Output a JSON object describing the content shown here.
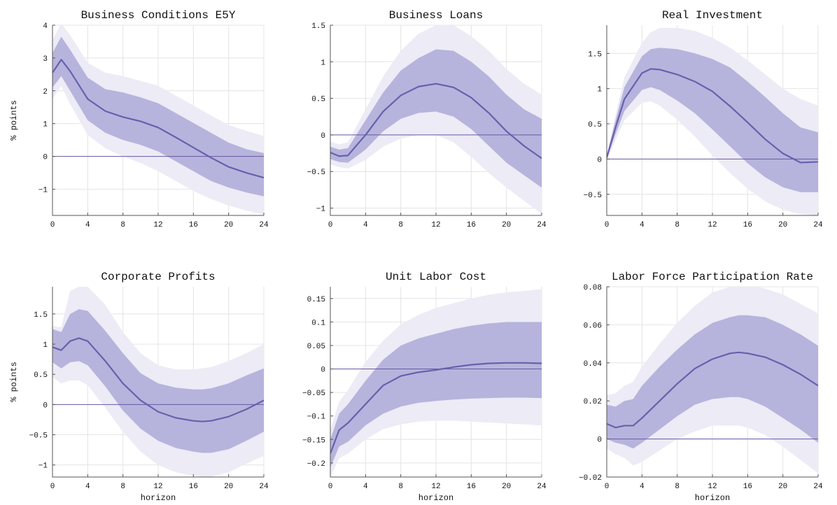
{
  "style": {
    "outer_band_color": "#ecebf6",
    "inner_band_color": "#b6b4dc",
    "median_color": "#6a5fad",
    "zero_line_color": "#6a57a4"
  },
  "chart_data": [
    {
      "type": "area",
      "title": "Business Conditions E5Y",
      "xlabel": "",
      "ylabel": "% points",
      "xlim": [
        0,
        24
      ],
      "ylim": [
        -1.8,
        4.0
      ],
      "xticks": [
        0,
        4,
        8,
        12,
        16,
        20,
        24
      ],
      "yticks": [
        -1,
        0,
        1,
        2,
        3,
        4
      ],
      "ytick_labels": [
        "−1",
        "0",
        "1",
        "2",
        "3",
        "4"
      ],
      "grid": true,
      "x": [
        0,
        1,
        2,
        4,
        6,
        8,
        10,
        12,
        14,
        16,
        18,
        20,
        22,
        24
      ],
      "median": [
        2.55,
        2.95,
        2.6,
        1.75,
        1.38,
        1.2,
        1.07,
        0.88,
        0.58,
        0.27,
        -0.04,
        -0.32,
        -0.5,
        -0.65
      ],
      "inner_band": {
        "lower": [
          2.1,
          2.45,
          2.0,
          1.1,
          0.72,
          0.5,
          0.35,
          0.15,
          -0.15,
          -0.45,
          -0.75,
          -0.95,
          -1.1,
          -1.22
        ],
        "upper": [
          3.15,
          3.65,
          3.25,
          2.4,
          2.05,
          1.95,
          1.8,
          1.62,
          1.32,
          1.02,
          0.72,
          0.42,
          0.22,
          0.1
        ]
      },
      "outer_band": {
        "lower": [
          1.75,
          2.15,
          1.6,
          0.65,
          0.25,
          0.0,
          -0.2,
          -0.45,
          -0.75,
          -1.05,
          -1.3,
          -1.5,
          -1.65,
          -1.78
        ],
        "upper": [
          3.55,
          4.05,
          3.7,
          2.85,
          2.55,
          2.45,
          2.3,
          2.15,
          1.85,
          1.55,
          1.25,
          0.95,
          0.78,
          0.62
        ]
      }
    },
    {
      "type": "area",
      "title": "Business Loans",
      "xlabel": "",
      "ylabel": "",
      "xlim": [
        0,
        24
      ],
      "ylim": [
        -1.1,
        1.5
      ],
      "xticks": [
        0,
        4,
        8,
        12,
        16,
        20,
        24
      ],
      "yticks": [
        -1,
        -0.5,
        0,
        0.5,
        1,
        1.5
      ],
      "ytick_labels": [
        "−1",
        "−0.5",
        "0",
        "0.5",
        "1",
        "1.5"
      ],
      "grid": true,
      "x": [
        0,
        1,
        2,
        4,
        6,
        8,
        10,
        12,
        14,
        16,
        18,
        20,
        22,
        24
      ],
      "median": [
        -0.24,
        -0.29,
        -0.28,
        0.0,
        0.32,
        0.54,
        0.66,
        0.7,
        0.65,
        0.51,
        0.3,
        0.05,
        -0.15,
        -0.32
      ],
      "inner_band": {
        "lower": [
          -0.33,
          -0.37,
          -0.38,
          -0.2,
          0.05,
          0.22,
          0.3,
          0.32,
          0.25,
          0.08,
          -0.15,
          -0.38,
          -0.55,
          -0.72
        ],
        "upper": [
          -0.16,
          -0.2,
          -0.18,
          0.2,
          0.58,
          0.88,
          1.05,
          1.17,
          1.15,
          1.0,
          0.8,
          0.55,
          0.35,
          0.22
        ]
      },
      "outer_band": {
        "lower": [
          -0.4,
          -0.44,
          -0.46,
          -0.34,
          -0.16,
          -0.05,
          0.0,
          0.0,
          -0.1,
          -0.3,
          -0.52,
          -0.72,
          -0.9,
          -1.08
        ],
        "upper": [
          -0.09,
          -0.13,
          -0.1,
          0.35,
          0.8,
          1.15,
          1.38,
          1.5,
          1.5,
          1.35,
          1.15,
          0.9,
          0.7,
          0.55
        ]
      }
    },
    {
      "type": "area",
      "title": "Real Investment",
      "xlabel": "",
      "ylabel": "",
      "xlim": [
        0,
        24
      ],
      "ylim": [
        -0.8,
        1.9
      ],
      "xticks": [
        0,
        4,
        8,
        12,
        16,
        20,
        24
      ],
      "yticks": [
        -0.5,
        0,
        0.5,
        1,
        1.5
      ],
      "ytick_labels": [
        "−0.5",
        "0",
        "0.5",
        "1",
        "1.5"
      ],
      "grid": true,
      "x": [
        0,
        1,
        2,
        4,
        5,
        6,
        8,
        10,
        12,
        14,
        16,
        18,
        20,
        22,
        24
      ],
      "median": [
        0.02,
        0.45,
        0.85,
        1.22,
        1.28,
        1.27,
        1.2,
        1.1,
        0.96,
        0.75,
        0.52,
        0.28,
        0.08,
        -0.05,
        -0.04
      ],
      "inner_band": {
        "lower": [
          0.0,
          0.35,
          0.68,
          0.98,
          1.02,
          0.98,
          0.83,
          0.65,
          0.42,
          0.18,
          -0.06,
          -0.26,
          -0.4,
          -0.47,
          -0.47
        ],
        "upper": [
          0.05,
          0.55,
          1.02,
          1.46,
          1.56,
          1.58,
          1.56,
          1.5,
          1.42,
          1.3,
          1.1,
          0.88,
          0.65,
          0.45,
          0.38
        ]
      },
      "outer_band": {
        "lower": [
          -0.02,
          0.27,
          0.55,
          0.8,
          0.82,
          0.76,
          0.56,
          0.32,
          0.05,
          -0.2,
          -0.42,
          -0.6,
          -0.72,
          -0.78,
          -0.8
        ],
        "upper": [
          0.07,
          0.62,
          1.16,
          1.65,
          1.8,
          1.86,
          1.86,
          1.82,
          1.72,
          1.58,
          1.4,
          1.2,
          1.0,
          0.85,
          0.76
        ]
      }
    },
    {
      "type": "area",
      "title": "Corporate Profits",
      "xlabel": "horizon",
      "ylabel": "% points",
      "xlim": [
        0,
        24
      ],
      "ylim": [
        -1.2,
        1.95
      ],
      "xticks": [
        0,
        4,
        8,
        12,
        16,
        20,
        24
      ],
      "yticks": [
        -1,
        -0.5,
        0,
        0.5,
        1,
        1.5
      ],
      "ytick_labels": [
        "−1",
        "−0.5",
        "0",
        "0.5",
        "1",
        "1.5"
      ],
      "grid": true,
      "x": [
        0,
        1,
        2,
        3,
        4,
        6,
        8,
        10,
        12,
        14,
        16,
        17,
        18,
        20,
        22,
        24
      ],
      "median": [
        0.95,
        0.9,
        1.05,
        1.1,
        1.05,
        0.72,
        0.35,
        0.07,
        -0.12,
        -0.22,
        -0.27,
        -0.28,
        -0.27,
        -0.2,
        -0.08,
        0.07
      ],
      "inner_band": {
        "lower": [
          0.7,
          0.6,
          0.7,
          0.72,
          0.65,
          0.3,
          -0.1,
          -0.4,
          -0.6,
          -0.72,
          -0.78,
          -0.8,
          -0.8,
          -0.74,
          -0.6,
          -0.45
        ],
        "upper": [
          1.25,
          1.2,
          1.5,
          1.58,
          1.55,
          1.22,
          0.85,
          0.52,
          0.35,
          0.28,
          0.25,
          0.25,
          0.27,
          0.35,
          0.48,
          0.6
        ]
      },
      "outer_band": {
        "lower": [
          0.45,
          0.35,
          0.4,
          0.4,
          0.32,
          -0.05,
          -0.45,
          -0.78,
          -1.0,
          -1.12,
          -1.18,
          -1.2,
          -1.2,
          -1.12,
          -0.98,
          -0.85
        ],
        "upper": [
          1.3,
          1.28,
          1.88,
          1.95,
          1.95,
          1.65,
          1.2,
          0.85,
          0.65,
          0.58,
          0.58,
          0.6,
          0.62,
          0.72,
          0.85,
          1.0
        ]
      }
    },
    {
      "type": "area",
      "title": "Unit Labor Cost",
      "xlabel": "horizon",
      "ylabel": "",
      "xlim": [
        0,
        24
      ],
      "ylim": [
        -0.23,
        0.175
      ],
      "xticks": [
        0,
        4,
        8,
        12,
        16,
        20,
        24
      ],
      "yticks": [
        -0.2,
        -0.15,
        -0.1,
        -0.05,
        0,
        0.05,
        0.1,
        0.15
      ],
      "ytick_labels": [
        "−0.2",
        "−0.15",
        "−0.1",
        "−0.05",
        "0",
        "0.05",
        "0.1",
        "0.15"
      ],
      "grid": true,
      "x": [
        0,
        1,
        2,
        4,
        6,
        8,
        10,
        12,
        14,
        16,
        18,
        20,
        22,
        24
      ],
      "median": [
        -0.18,
        -0.13,
        -0.115,
        -0.075,
        -0.035,
        -0.015,
        -0.007,
        -0.002,
        0.004,
        0.009,
        0.012,
        0.013,
        0.013,
        0.012
      ],
      "inner_band": {
        "lower": [
          -0.21,
          -0.165,
          -0.155,
          -0.12,
          -0.095,
          -0.08,
          -0.072,
          -0.068,
          -0.065,
          -0.063,
          -0.062,
          -0.061,
          -0.061,
          -0.062
        ],
        "upper": [
          -0.15,
          -0.095,
          -0.075,
          -0.025,
          0.02,
          0.05,
          0.065,
          0.075,
          0.085,
          0.092,
          0.097,
          0.1,
          0.1,
          0.1
        ]
      },
      "outer_band": {
        "lower": [
          -0.23,
          -0.19,
          -0.18,
          -0.15,
          -0.128,
          -0.118,
          -0.112,
          -0.11,
          -0.11,
          -0.112,
          -0.114,
          -0.116,
          -0.118,
          -0.12
        ],
        "upper": [
          -0.13,
          -0.07,
          -0.045,
          0.015,
          0.06,
          0.095,
          0.115,
          0.13,
          0.14,
          0.15,
          0.158,
          0.163,
          0.166,
          0.17
        ]
      }
    },
    {
      "type": "area",
      "title": "Labor Force Participation Rate",
      "xlabel": "horizon",
      "ylabel": "",
      "xlim": [
        0,
        24
      ],
      "ylim": [
        -0.02,
        0.08
      ],
      "xticks": [
        0,
        4,
        8,
        12,
        16,
        20,
        24
      ],
      "yticks": [
        -0.02,
        0,
        0.02,
        0.04,
        0.06,
        0.08
      ],
      "ytick_labels": [
        "−0.02",
        "0",
        "0.02",
        "0.04",
        "0.06",
        "0.08"
      ],
      "grid": true,
      "x": [
        0,
        1,
        2,
        3,
        4,
        6,
        8,
        10,
        12,
        14,
        15,
        16,
        18,
        20,
        22,
        24
      ],
      "median": [
        0.008,
        0.006,
        0.007,
        0.007,
        0.011,
        0.02,
        0.029,
        0.037,
        0.042,
        0.045,
        0.0455,
        0.045,
        0.043,
        0.039,
        0.034,
        0.028
      ],
      "inner_band": {
        "lower": [
          0.0,
          -0.002,
          -0.003,
          -0.005,
          -0.002,
          0.005,
          0.012,
          0.018,
          0.021,
          0.022,
          0.022,
          0.021,
          0.017,
          0.011,
          0.005,
          -0.002
        ],
        "upper": [
          0.018,
          0.017,
          0.02,
          0.021,
          0.028,
          0.038,
          0.047,
          0.055,
          0.061,
          0.064,
          0.065,
          0.065,
          0.064,
          0.06,
          0.055,
          0.049
        ]
      },
      "outer_band": {
        "lower": [
          -0.005,
          -0.008,
          -0.01,
          -0.014,
          -0.012,
          -0.006,
          0.0,
          0.004,
          0.007,
          0.007,
          0.007,
          0.006,
          0.002,
          -0.004,
          -0.011,
          -0.018
        ],
        "upper": [
          0.023,
          0.024,
          0.028,
          0.03,
          0.038,
          0.05,
          0.061,
          0.07,
          0.077,
          0.08,
          0.081,
          0.081,
          0.079,
          0.076,
          0.071,
          0.066
        ]
      }
    }
  ]
}
